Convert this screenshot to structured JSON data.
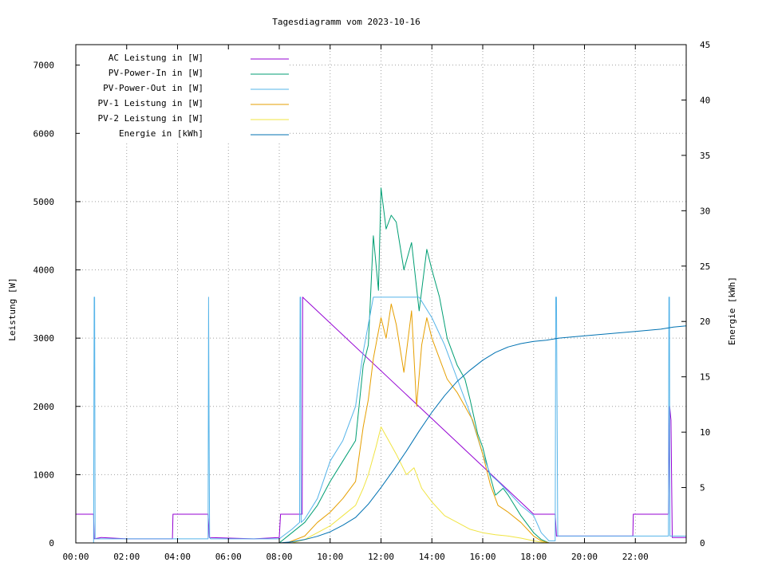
{
  "chart_data": {
    "type": "line",
    "title": "Tagesdiagramm vom 2023-10-16",
    "xlabel": "",
    "ylabel": "Leistung [W]",
    "y2label": "Energie [kWh]",
    "xlim_hours": [
      0,
      24
    ],
    "ylim": [
      0,
      7300
    ],
    "y2lim": [
      0,
      45
    ],
    "x_ticks": [
      "00:00",
      "02:00",
      "04:00",
      "06:00",
      "08:00",
      "10:00",
      "12:00",
      "14:00",
      "16:00",
      "18:00",
      "20:00",
      "22:00"
    ],
    "y_ticks": [
      0,
      1000,
      2000,
      3000,
      4000,
      5000,
      6000,
      7000
    ],
    "y2_ticks": [
      0,
      5,
      10,
      15,
      20,
      25,
      30,
      35,
      40,
      45
    ],
    "grid": true,
    "legend_position": "top-left",
    "series": [
      {
        "name": "AC Leistung in [W]",
        "axis": "left",
        "color": "#9400d3",
        "x": [
          0.0,
          0.7,
          0.72,
          1.0,
          2.0,
          3.8,
          3.82,
          5.2,
          5.25,
          7.0,
          8.0,
          8.05,
          8.9,
          8.92,
          18.0,
          18.05,
          18.85,
          18.9,
          21.9,
          21.92,
          23.3,
          23.35,
          23.4,
          23.45,
          24.0
        ],
        "y": [
          420,
          420,
          60,
          80,
          60,
          60,
          420,
          420,
          80,
          60,
          80,
          420,
          420,
          3600,
          420,
          420,
          420,
          100,
          100,
          420,
          420,
          2000,
          1800,
          80,
          80
        ]
      },
      {
        "name": "PV-Power-In in [W]",
        "axis": "left",
        "color": "#009e73",
        "x": [
          0.0,
          8.0,
          8.5,
          9.0,
          9.5,
          10.0,
          10.5,
          11.0,
          11.3,
          11.5,
          11.7,
          11.9,
          12.0,
          12.2,
          12.4,
          12.6,
          12.9,
          13.2,
          13.5,
          13.8,
          14.0,
          14.3,
          14.6,
          15.0,
          15.3,
          15.5,
          15.8,
          16.0,
          16.2,
          16.5,
          16.8,
          17.0,
          17.5,
          18.0,
          18.3,
          18.6,
          19.0,
          24.0
        ],
        "y": [
          0,
          0,
          150,
          300,
          550,
          900,
          1200,
          1500,
          2600,
          2900,
          4500,
          3700,
          5200,
          4600,
          4800,
          4700,
          4000,
          4400,
          3400,
          4300,
          4000,
          3600,
          3000,
          2600,
          2400,
          2100,
          1600,
          1400,
          1100,
          700,
          800,
          700,
          400,
          150,
          50,
          0,
          0,
          0
        ]
      },
      {
        "name": "PV-Power-Out in [W]",
        "axis": "left",
        "color": "#56b4e9",
        "x": [
          0.0,
          0.7,
          0.72,
          0.74,
          0.76,
          1.5,
          4.0,
          5.2,
          5.22,
          5.24,
          5.26,
          5.3,
          6.0,
          8.0,
          8.5,
          8.8,
          8.82,
          8.84,
          8.86,
          9.0,
          9.5,
          10.0,
          10.5,
          11.0,
          11.3,
          11.5,
          11.7,
          12.0,
          12.5,
          13.0,
          13.5,
          14.0,
          14.5,
          15.0,
          15.5,
          16.0,
          16.3,
          16.6,
          17.0,
          17.5,
          18.0,
          18.3,
          18.6,
          18.85,
          18.87,
          18.9,
          18.95,
          19.5,
          21.0,
          23.3,
          23.32,
          23.34,
          23.36,
          24.0
        ],
        "y": [
          0,
          0,
          3600,
          3600,
          60,
          60,
          60,
          60,
          3600,
          1800,
          80,
          60,
          60,
          60,
          200,
          300,
          3600,
          3600,
          300,
          350,
          650,
          1200,
          1500,
          2000,
          2800,
          3200,
          3600,
          3600,
          3600,
          3600,
          3600,
          3300,
          2900,
          2400,
          1900,
          1300,
          1000,
          900,
          750,
          550,
          400,
          150,
          30,
          30,
          3600,
          3600,
          100,
          100,
          100,
          100,
          3600,
          3600,
          100,
          100
        ]
      },
      {
        "name": "PV-1 Leistung in [W]",
        "axis": "left",
        "color": "#e69f00",
        "x": [
          0.0,
          8.3,
          9.0,
          9.5,
          10.0,
          10.5,
          11.0,
          11.3,
          11.5,
          11.7,
          11.9,
          12.0,
          12.2,
          12.4,
          12.6,
          12.9,
          13.2,
          13.4,
          13.6,
          13.8,
          14.0,
          14.3,
          14.6,
          15.0,
          15.3,
          15.6,
          16.0,
          16.3,
          16.6,
          17.0,
          17.5,
          18.0,
          18.3,
          18.6,
          24.0
        ],
        "y": [
          0,
          0,
          100,
          300,
          450,
          650,
          900,
          1700,
          2100,
          2700,
          3100,
          3300,
          3000,
          3500,
          3200,
          2500,
          3400,
          2000,
          2900,
          3300,
          3000,
          2700,
          2400,
          2200,
          2000,
          1800,
          1300,
          850,
          550,
          450,
          300,
          100,
          30,
          0,
          0
        ]
      },
      {
        "name": "PV-2 Leistung in [W]",
        "axis": "left",
        "color": "#f0e442",
        "x": [
          0.0,
          8.5,
          9.0,
          9.5,
          10.0,
          10.5,
          11.0,
          11.3,
          11.5,
          11.8,
          12.0,
          12.3,
          12.6,
          13.0,
          13.3,
          13.6,
          14.0,
          14.5,
          15.0,
          15.5,
          16.0,
          16.5,
          17.0,
          17.5,
          18.0,
          18.5,
          24.0
        ],
        "y": [
          0,
          0,
          50,
          150,
          250,
          400,
          550,
          800,
          1000,
          1400,
          1700,
          1500,
          1300,
          1000,
          1100,
          800,
          600,
          400,
          300,
          200,
          150,
          120,
          100,
          70,
          30,
          0,
          0
        ]
      },
      {
        "name": "Energie in [kWh]",
        "axis": "right",
        "color": "#0072b2",
        "x": [
          0.0,
          8.0,
          8.5,
          9.0,
          9.5,
          10.0,
          10.5,
          11.0,
          11.5,
          12.0,
          12.5,
          13.0,
          13.5,
          14.0,
          14.5,
          15.0,
          15.5,
          16.0,
          16.5,
          17.0,
          17.5,
          18.0,
          18.5,
          19.0,
          20.0,
          21.0,
          22.0,
          23.0,
          23.5,
          24.0
        ],
        "y": [
          0.0,
          0.0,
          0.1,
          0.3,
          0.6,
          1.0,
          1.6,
          2.3,
          3.5,
          5.0,
          6.6,
          8.3,
          10.1,
          11.8,
          13.3,
          14.6,
          15.6,
          16.5,
          17.2,
          17.7,
          18.0,
          18.2,
          18.3,
          18.5,
          18.7,
          18.9,
          19.1,
          19.3,
          19.5,
          19.6
        ]
      }
    ]
  }
}
